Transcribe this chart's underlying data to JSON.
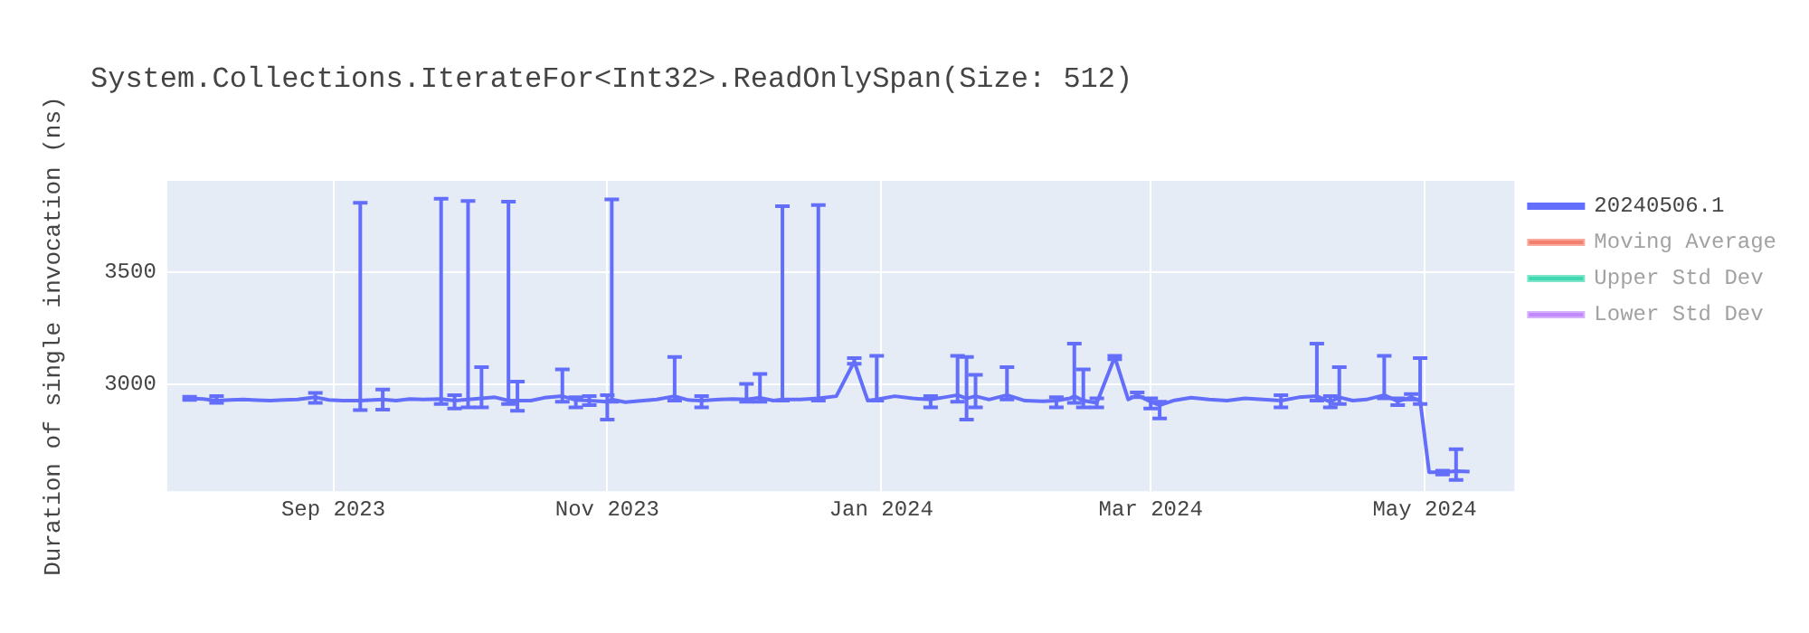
{
  "chart_data": {
    "type": "line",
    "title": "System.Collections.IterateFor<Int32>.ReadOnlySpan(Size: 512)",
    "ylabel": "Duration of single invocation (ns)",
    "x": [
      "2023-07-31",
      "2023-08-03",
      "2023-08-06",
      "2023-08-09",
      "2023-08-12",
      "2023-08-15",
      "2023-08-18",
      "2023-08-21",
      "2023-08-24",
      "2023-08-28",
      "2023-08-31",
      "2023-09-03",
      "2023-09-07",
      "2023-09-10",
      "2023-09-12",
      "2023-09-15",
      "2023-09-18",
      "2023-09-21",
      "2023-09-25",
      "2023-09-28",
      "2023-10-01",
      "2023-10-04",
      "2023-10-07",
      "2023-10-10",
      "2023-10-12",
      "2023-10-15",
      "2023-10-18",
      "2023-10-22",
      "2023-10-25",
      "2023-10-28",
      "2023-11-01",
      "2023-11-02",
      "2023-11-05",
      "2023-11-09",
      "2023-11-12",
      "2023-11-16",
      "2023-11-19",
      "2023-11-22",
      "2023-11-26",
      "2023-11-29",
      "2023-12-02",
      "2023-12-05",
      "2023-12-08",
      "2023-12-10",
      "2023-12-14",
      "2023-12-18",
      "2023-12-22",
      "2023-12-26",
      "2023-12-29",
      "2023-12-31",
      "2024-01-04",
      "2024-01-08",
      "2024-01-12",
      "2024-01-15",
      "2024-01-18",
      "2024-01-20",
      "2024-01-22",
      "2024-01-25",
      "2024-01-29",
      "2024-02-02",
      "2024-02-06",
      "2024-02-09",
      "2024-02-12",
      "2024-02-13",
      "2024-02-15",
      "2024-02-18",
      "2024-02-22",
      "2024-02-25",
      "2024-02-27",
      "2024-03-01",
      "2024-03-03",
      "2024-03-06",
      "2024-03-10",
      "2024-03-14",
      "2024-03-18",
      "2024-03-22",
      "2024-03-26",
      "2024-03-30",
      "2024-04-03",
      "2024-04-07",
      "2024-04-10",
      "2024-04-12",
      "2024-04-15",
      "2024-04-18",
      "2024-04-22",
      "2024-04-25",
      "2024-04-28",
      "2024-04-30",
      "2024-05-02",
      "2024-05-05",
      "2024-05-08",
      "2024-05-11"
    ],
    "series": [
      {
        "name": "20240506.1",
        "color": "#636efa",
        "values": [
          2935,
          2932,
          2925,
          2928,
          2930,
          2927,
          2925,
          2928,
          2930,
          2940,
          2928,
          2925,
          2925,
          2928,
          2930,
          2925,
          2932,
          2930,
          2932,
          2925,
          2930,
          2935,
          2940,
          2925,
          2925,
          2925,
          2938,
          2945,
          2928,
          2925,
          2920,
          2930,
          2918,
          2925,
          2930,
          2945,
          2928,
          2925,
          2930,
          2932,
          2930,
          2938,
          2925,
          2930,
          2930,
          2935,
          2945,
          3100,
          2925,
          2930,
          2945,
          2935,
          2930,
          2940,
          2950,
          2935,
          2945,
          2930,
          2950,
          2925,
          2922,
          2925,
          2935,
          2945,
          2925,
          2915,
          3120,
          2930,
          2950,
          2920,
          2905,
          2925,
          2938,
          2930,
          2925,
          2935,
          2930,
          2925,
          2940,
          2945,
          2920,
          2940,
          2925,
          2930,
          2950,
          2922,
          2940,
          2925,
          2605,
          2605,
          2610,
          2608
        ],
        "errors": [
          [
            2928,
            2942
          ],
          null,
          [
            2915,
            2945
          ],
          null,
          null,
          null,
          null,
          null,
          null,
          [
            2915,
            2960
          ],
          null,
          null,
          [
            2883,
            3810
          ],
          null,
          [
            2885,
            2975
          ],
          null,
          null,
          null,
          [
            2910,
            3828
          ],
          [
            2890,
            2950
          ],
          [
            2895,
            3818
          ],
          [
            2895,
            3075
          ],
          null,
          [
            2910,
            3815
          ],
          [
            2880,
            3010
          ],
          null,
          null,
          [
            2920,
            3065
          ],
          [
            2895,
            2940
          ],
          [
            2905,
            2945
          ],
          [
            2840,
            2950
          ],
          [
            2920,
            3825
          ],
          null,
          null,
          null,
          [
            2925,
            3120
          ],
          null,
          [
            2895,
            2945
          ],
          null,
          null,
          [
            2920,
            3000
          ],
          [
            2920,
            3045
          ],
          null,
          [
            2925,
            3795
          ],
          null,
          [
            2925,
            3800
          ],
          null,
          [
            3090,
            3115
          ],
          null,
          [
            2925,
            3125
          ],
          null,
          null,
          [
            2895,
            2945
          ],
          null,
          [
            2920,
            3125
          ],
          [
            2840,
            3120
          ],
          [
            2895,
            3040
          ],
          null,
          [
            2930,
            3075
          ],
          null,
          null,
          [
            2895,
            2940
          ],
          null,
          [
            2915,
            3180
          ],
          [
            2895,
            3065
          ],
          [
            2895,
            2935
          ],
          [
            3110,
            3125
          ],
          null,
          [
            2940,
            2962
          ],
          [
            2890,
            2935
          ],
          [
            2845,
            2920
          ],
          null,
          null,
          null,
          null,
          null,
          null,
          [
            2895,
            2950
          ],
          null,
          [
            2925,
            3180
          ],
          [
            2895,
            2945
          ],
          [
            2910,
            3075
          ],
          null,
          null,
          [
            2935,
            3125
          ],
          [
            2905,
            2935
          ],
          [
            2930,
            2955
          ],
          [
            2910,
            3115
          ],
          null,
          [
            2595,
            2612
          ],
          [
            2570,
            2708
          ],
          null
        ]
      },
      {
        "name": "Moving Average",
        "color": "#ef553b",
        "values": [
          null,
          null,
          null,
          null,
          null,
          null,
          null,
          null,
          null,
          null,
          null,
          null,
          null,
          null,
          null,
          null,
          null,
          null,
          null,
          null,
          null,
          null,
          null,
          null,
          null,
          null,
          null,
          null,
          null,
          null,
          null,
          null,
          null,
          null,
          null,
          null,
          null,
          null,
          null,
          null,
          null,
          null,
          null,
          null,
          null,
          null,
          null,
          null,
          null,
          null,
          null,
          null,
          null,
          null,
          null,
          null,
          null,
          null,
          null,
          null,
          null,
          null,
          null,
          null,
          null,
          null,
          null,
          null,
          null,
          null,
          null,
          null,
          null,
          null,
          null,
          null,
          null,
          null,
          null,
          null,
          null,
          null,
          null,
          null,
          null,
          null,
          null,
          null,
          null,
          null,
          null,
          null
        ]
      },
      {
        "name": "Upper Std Dev",
        "color": "#00cc96",
        "values": [
          null,
          null,
          null,
          null,
          null,
          null,
          null,
          null,
          null,
          null,
          null,
          null,
          null,
          null,
          null,
          null,
          null,
          null,
          null,
          null,
          null,
          null,
          null,
          null,
          null,
          null,
          null,
          null,
          null,
          null,
          null,
          null,
          null,
          null,
          null,
          null,
          null,
          null,
          null,
          null,
          null,
          null,
          null,
          null,
          null,
          null,
          null,
          null,
          null,
          null,
          null,
          null,
          null,
          null,
          null,
          null,
          null,
          null,
          null,
          null,
          null,
          null,
          null,
          null,
          null,
          null,
          null,
          null,
          null,
          null,
          null,
          null,
          null,
          null,
          null,
          null,
          null,
          null,
          null,
          null,
          null,
          null,
          null,
          null,
          null,
          null,
          null,
          null,
          null,
          null,
          null,
          null
        ]
      },
      {
        "name": "Lower Std Dev",
        "color": "#ab63fa",
        "values": [
          null,
          null,
          null,
          null,
          null,
          null,
          null,
          null,
          null,
          null,
          null,
          null,
          null,
          null,
          null,
          null,
          null,
          null,
          null,
          null,
          null,
          null,
          null,
          null,
          null,
          null,
          null,
          null,
          null,
          null,
          null,
          null,
          null,
          null,
          null,
          null,
          null,
          null,
          null,
          null,
          null,
          null,
          null,
          null,
          null,
          null,
          null,
          null,
          null,
          null,
          null,
          null,
          null,
          null,
          null,
          null,
          null,
          null,
          null,
          null,
          null,
          null,
          null,
          null,
          null,
          null,
          null,
          null,
          null,
          null,
          null,
          null,
          null,
          null,
          null,
          null,
          null,
          null,
          null,
          null,
          null,
          null,
          null,
          null,
          null,
          null,
          null,
          null,
          null,
          null,
          null,
          null
        ]
      }
    ],
    "xlim": [
      "2023-07-26",
      "2024-05-21"
    ],
    "xticks": [
      {
        "value": "2023-09-01",
        "label": "Sep 2023"
      },
      {
        "value": "2023-11-01",
        "label": "Nov 2023"
      },
      {
        "value": "2024-01-01",
        "label": "Jan 2024"
      },
      {
        "value": "2024-03-01",
        "label": "Mar 2024"
      },
      {
        "value": "2024-05-01",
        "label": "May 2024"
      }
    ],
    "ylim": [
      2520,
      3908
    ],
    "yticks": [
      3000,
      3500
    ],
    "grid": true,
    "legend": "top right",
    "marker": "none",
    "line_style": "solid"
  }
}
